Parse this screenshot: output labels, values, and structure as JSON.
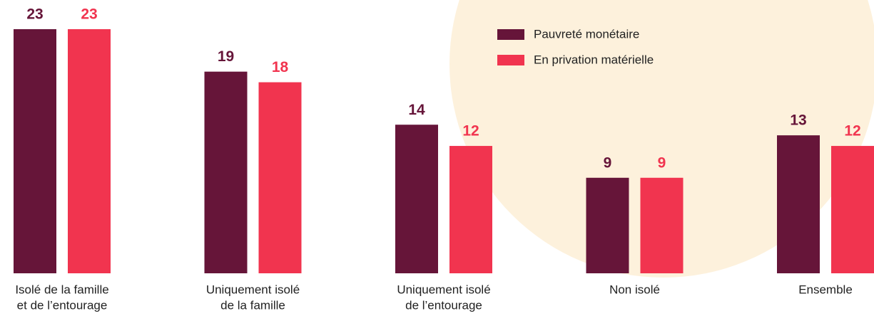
{
  "chart_data": {
    "type": "bar",
    "categories": [
      [
        "Isolé de la famille",
        "et de l’entourage"
      ],
      [
        "Uniquement isolé",
        "de la famille"
      ],
      [
        "Uniquement isolé",
        "de l’entourage"
      ],
      [
        "Non isolé"
      ],
      [
        "Ensemble"
      ]
    ],
    "series": [
      {
        "name": "Pauvreté monétaire",
        "color": "#661539",
        "values": [
          23,
          19,
          14,
          9,
          13
        ]
      },
      {
        "name": "En privation matérielle",
        "color": "#f1344f",
        "values": [
          23,
          18,
          12,
          9,
          12
        ]
      }
    ],
    "ylim": [
      0,
      23
    ]
  }
}
